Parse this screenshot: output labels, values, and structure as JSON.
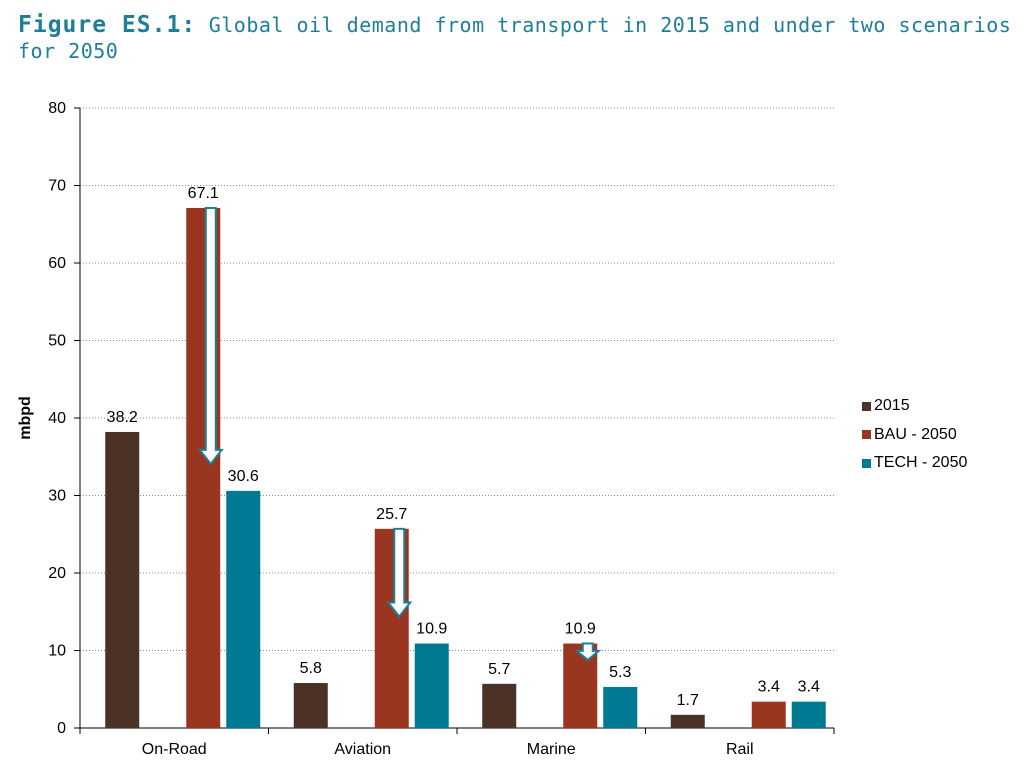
{
  "figure": {
    "label": "Figure ES.1:",
    "caption": "Global oil demand from transport in 2015 and under two scenarios for 2050"
  },
  "colors": {
    "s2015": "#4b3126",
    "bau": "#9a3620",
    "tech": "#007a92",
    "arrow": "#1a7f98",
    "grid": "#888888"
  },
  "chart_data": {
    "type": "bar",
    "categories": [
      "On-Road",
      "Aviation",
      "Marine",
      "Rail"
    ],
    "series": [
      {
        "name": "2015",
        "values": [
          38.2,
          5.8,
          5.7,
          1.7
        ]
      },
      {
        "name": "BAU - 2050",
        "values": [
          67.1,
          25.7,
          10.9,
          3.4
        ]
      },
      {
        "name": "TECH - 2050",
        "values": [
          30.6,
          10.9,
          5.3,
          3.4
        ]
      }
    ],
    "ylabel": "mbpd",
    "ylim": [
      0,
      80
    ],
    "yticks": [
      0,
      10,
      20,
      30,
      40,
      50,
      60,
      70,
      80
    ],
    "grid": "horizontal dotted",
    "legend": "right",
    "annotations": "downward arrows from BAU - 2050 to TECH - 2050 level for On-Road, Aviation, Marine"
  }
}
